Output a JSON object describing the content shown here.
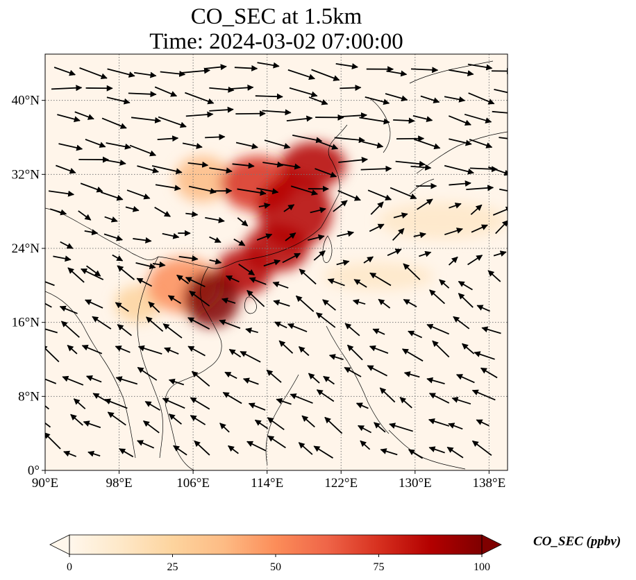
{
  "title": {
    "line1": "CO_SEC at 1.5km",
    "line2": "Time: 2024-03-02 07:00:00"
  },
  "map": {
    "lon_range": [
      90,
      140
    ],
    "lat_range": [
      0,
      45
    ],
    "lon_ticks": [
      {
        "value": 90,
        "label": "90°E"
      },
      {
        "value": 98,
        "label": "98°E"
      },
      {
        "value": 106,
        "label": "106°E"
      },
      {
        "value": 114,
        "label": "114°E"
      },
      {
        "value": 122,
        "label": "122°E"
      },
      {
        "value": 130,
        "label": "130°E"
      },
      {
        "value": 138,
        "label": "138°E"
      }
    ],
    "lat_ticks": [
      {
        "value": 0,
        "label": "0°"
      },
      {
        "value": 8,
        "label": "8°N"
      },
      {
        "value": 16,
        "label": "16°N"
      },
      {
        "value": 24,
        "label": "24°N"
      },
      {
        "value": 32,
        "label": "32°N"
      },
      {
        "value": 40,
        "label": "40°N"
      }
    ],
    "gridlines": "dotted",
    "overlay": "wind vectors (black arrows)",
    "coastlines": true
  },
  "plume_regions": [
    {
      "lon": 108,
      "lat": 18.5,
      "r_lon": 3.0,
      "r_lat": 3.0,
      "value": 100
    },
    {
      "lon": 111.5,
      "lat": 21.5,
      "r_lon": 3.0,
      "r_lat": 2.5,
      "value": 90
    },
    {
      "lon": 115,
      "lat": 24,
      "r_lon": 3.5,
      "r_lat": 2.5,
      "value": 85
    },
    {
      "lon": 117,
      "lat": 28,
      "r_lon": 4.0,
      "r_lat": 4.0,
      "value": 85
    },
    {
      "lon": 113,
      "lat": 31,
      "r_lon": 4.0,
      "r_lat": 3.0,
      "value": 80
    },
    {
      "lon": 119,
      "lat": 33,
      "r_lon": 3.5,
      "r_lat": 2.5,
      "value": 90
    },
    {
      "lon": 107,
      "lat": 31.5,
      "r_lon": 3.0,
      "r_lat": 2.5,
      "value": 40
    },
    {
      "lon": 105,
      "lat": 20,
      "r_lon": 4.0,
      "r_lat": 3.0,
      "value": 45
    },
    {
      "lon": 100,
      "lat": 18,
      "r_lon": 2.5,
      "r_lat": 2.0,
      "value": 30
    },
    {
      "lon": 126,
      "lat": 21,
      "r_lon": 6.0,
      "r_lat": 1.5,
      "value": 15
    },
    {
      "lon": 133,
      "lat": 27,
      "r_lon": 7.0,
      "r_lat": 2.0,
      "value": 12
    }
  ],
  "colorbar": {
    "label": "CO_SEC (ppbv)",
    "min": 0,
    "max": 100,
    "extend": "both",
    "ticks": [
      {
        "value": 0,
        "label": "0"
      },
      {
        "value": 25,
        "label": "25"
      },
      {
        "value": 50,
        "label": "50"
      },
      {
        "value": 75,
        "label": "75"
      },
      {
        "value": 100,
        "label": "100"
      }
    ],
    "colormap": "OrRd",
    "colors": [
      "#fff7ec",
      "#fee8c8",
      "#fdd49e",
      "#fdbb84",
      "#fc8d59",
      "#ef6548",
      "#d7301f",
      "#b30000",
      "#7f0000"
    ]
  }
}
